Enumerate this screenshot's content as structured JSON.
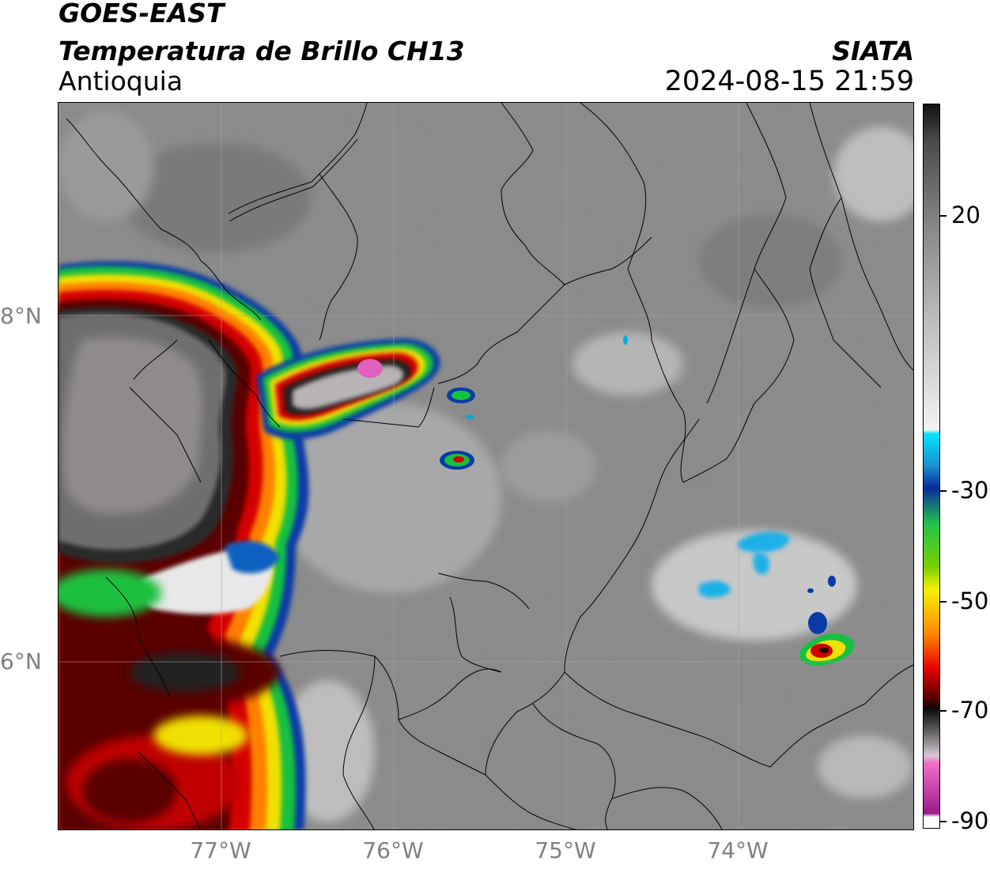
{
  "header": {
    "satellite": "GOES-EAST",
    "product": "Temperatura de Brillo CH13",
    "region": "Antioquia",
    "organization": "SIATA",
    "timestamp": "2024-08-15 21:59"
  },
  "map": {
    "lat_labels": [
      "8°N",
      "6°N"
    ],
    "lon_labels": [
      "77°W",
      "76°W",
      "75°W",
      "74°W"
    ]
  },
  "colorbar": {
    "ticks": [
      "20",
      "-30",
      "-50",
      "-70",
      "-90"
    ],
    "range": [
      -90,
      30
    ],
    "colors": {
      "black_top": "#111111",
      "gray_mid": "#8c8c8c",
      "white": "#f2f2f2",
      "cyan": "#00e5ff",
      "blue": "#0a2a9e",
      "green": "#22c44a",
      "yellow": "#f5f000",
      "orange": "#ff8c00",
      "red": "#e60000",
      "darkred": "#5a0000",
      "black_low": "#0a0a0a",
      "pink": "#f070c8",
      "purple": "#9a1a8c"
    }
  }
}
